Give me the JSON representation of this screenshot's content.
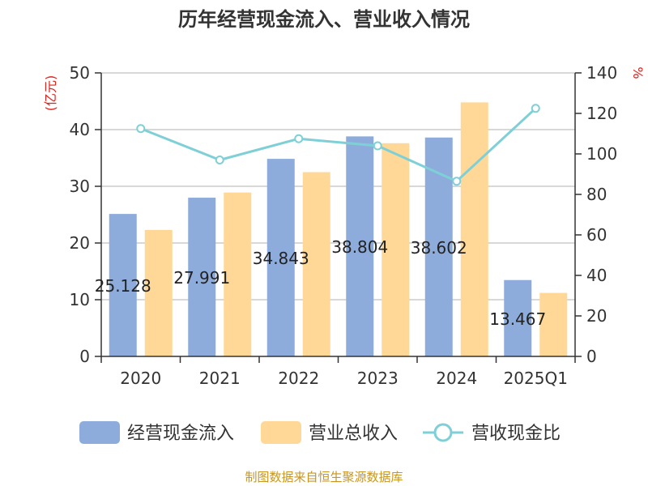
{
  "chart_data": {
    "type": "bar",
    "title": "历年经营现金流入、营业收入情况",
    "categories": [
      "2020",
      "2021",
      "2022",
      "2023",
      "2024",
      "2025Q1"
    ],
    "series": [
      {
        "name": "经营现金流入",
        "type": "bar",
        "axis": "left",
        "color": "#8eacdb",
        "values": [
          25.128,
          27.991,
          34.843,
          38.804,
          38.602,
          13.467
        ]
      },
      {
        "name": "营业总收入",
        "type": "bar",
        "axis": "left",
        "color": "#ffd898",
        "values": [
          22.3,
          28.9,
          32.5,
          37.6,
          44.8,
          11.2
        ]
      },
      {
        "name": "营收现金比",
        "type": "line",
        "axis": "right",
        "color": "#7fd0d6",
        "values": [
          112.5,
          97.0,
          107.5,
          104.0,
          86.5,
          122.5
        ]
      }
    ],
    "bar_labels": [
      "25.128",
      "27.991",
      "34.843",
      "38.804",
      "38.602",
      "13.467"
    ],
    "left_axis": {
      "unit": "(亿元)",
      "ylim": [
        0,
        50
      ],
      "ticks": [
        "0",
        "10",
        "20",
        "30",
        "40",
        "50"
      ]
    },
    "right_axis": {
      "unit": "%",
      "ylim": [
        0,
        140
      ],
      "ticks": [
        "0",
        "20",
        "40",
        "60",
        "80",
        "100",
        "120",
        "140"
      ]
    },
    "grid": true,
    "legend_position": "bottom"
  },
  "source": "制图数据来自恒生聚源数据库"
}
